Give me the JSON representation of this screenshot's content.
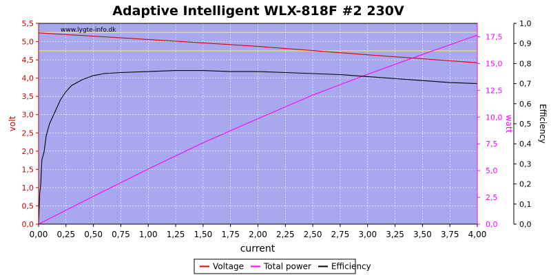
{
  "chart_data": {
    "type": "line",
    "title": "Adaptive Intelligent WLX-818F #2 230V",
    "watermark": "www.lygte-info.dk",
    "xlabel": "current",
    "ylabel_left": "volt",
    "ylabel_right": "watt",
    "ylabel_far_right": "Efficiency",
    "xlim": [
      0,
      4.0
    ],
    "ylim_left": [
      0,
      5.5
    ],
    "ylim_right": [
      0,
      18.75
    ],
    "ylim_far_right": [
      0,
      1.0
    ],
    "x_ticks": [
      "0,00",
      "0,25",
      "0,50",
      "0,75",
      "1,00",
      "1,25",
      "1,50",
      "1,75",
      "2,00",
      "2,25",
      "2,50",
      "2,75",
      "3,00",
      "3,25",
      "3,50",
      "3,75",
      "4,00"
    ],
    "y_left_ticks": [
      "0,0",
      "0,5",
      "1,0",
      "1,5",
      "2,0",
      "2,5",
      "3,0",
      "3,5",
      "4,0",
      "4,5",
      "5,0",
      "5,5"
    ],
    "y_right_ticks": [
      "0,0",
      "2,5",
      "5,0",
      "7,5",
      "10,0",
      "12,5",
      "15,0",
      "17,5"
    ],
    "y_far_right_ticks": [
      "0,0",
      "0,1",
      "0,2",
      "0,3",
      "0,4",
      "0,5",
      "0,6",
      "0,7",
      "0,8",
      "0,9",
      "1,0"
    ],
    "reference_lines_volt": [
      5.25,
      4.75
    ],
    "series": [
      {
        "name": "Voltage",
        "axis": "left",
        "color": "#dd0000",
        "x": [
          0,
          1.0,
          2.0,
          3.0,
          4.0
        ],
        "y": [
          5.24,
          5.06,
          4.87,
          4.64,
          4.42
        ]
      },
      {
        "name": "Total power",
        "axis": "right",
        "color": "#ff00ff",
        "x": [
          0,
          0.5,
          1.0,
          1.5,
          2.0,
          2.5,
          3.0,
          3.5,
          4.0
        ],
        "y": [
          0,
          2.6,
          5.15,
          7.6,
          9.85,
          12.05,
          14.0,
          15.85,
          17.65
        ]
      },
      {
        "name": "Efficiency",
        "axis": "far_right",
        "color": "#000000",
        "x": [
          0,
          0.01,
          0.02,
          0.03,
          0.05,
          0.07,
          0.1,
          0.15,
          0.2,
          0.25,
          0.3,
          0.4,
          0.5,
          0.6,
          0.75,
          1.0,
          1.25,
          1.5,
          1.75,
          2.0,
          2.25,
          2.5,
          2.75,
          3.0,
          3.25,
          3.5,
          3.75,
          4.0
        ],
        "y": [
          0,
          0.15,
          0.2,
          0.32,
          0.36,
          0.44,
          0.5,
          0.56,
          0.62,
          0.66,
          0.69,
          0.72,
          0.74,
          0.75,
          0.755,
          0.76,
          0.765,
          0.765,
          0.76,
          0.76,
          0.755,
          0.75,
          0.745,
          0.735,
          0.725,
          0.715,
          0.705,
          0.7
        ]
      }
    ],
    "legend": {
      "position": "bottom-center",
      "entries": [
        "Voltage",
        "Total power",
        "Efficiency"
      ]
    },
    "grid": true,
    "plot_background": "#a8a8ee"
  }
}
